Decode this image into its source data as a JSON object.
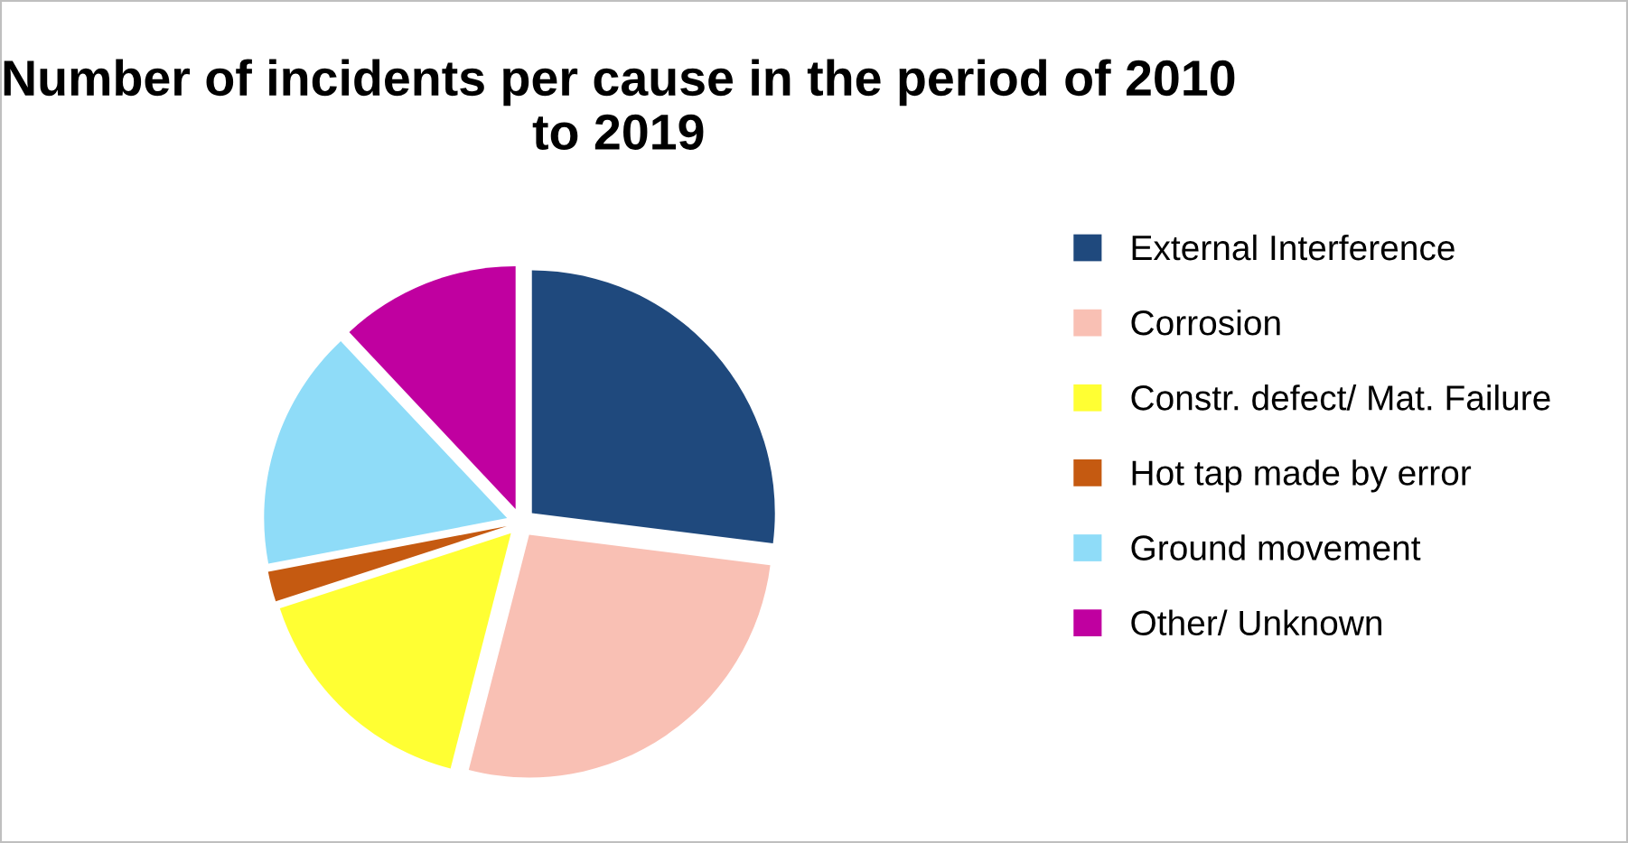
{
  "chart_data": {
    "type": "pie",
    "title": "Number of incidents per cause in the period of 2010 to 2019",
    "categories": [
      "External Interference",
      "Corrosion",
      "Constr. defect/ Mat. Failure",
      "Hot tap made by error",
      "Ground movement",
      "Other/ Unknown"
    ],
    "values": [
      27,
      27,
      16,
      2,
      16,
      12
    ],
    "colors": [
      "#1f497d",
      "#f9c0b4",
      "#ffff33",
      "#c55a11",
      "#8fdcf8",
      "#c000a0"
    ],
    "legend": "right"
  }
}
